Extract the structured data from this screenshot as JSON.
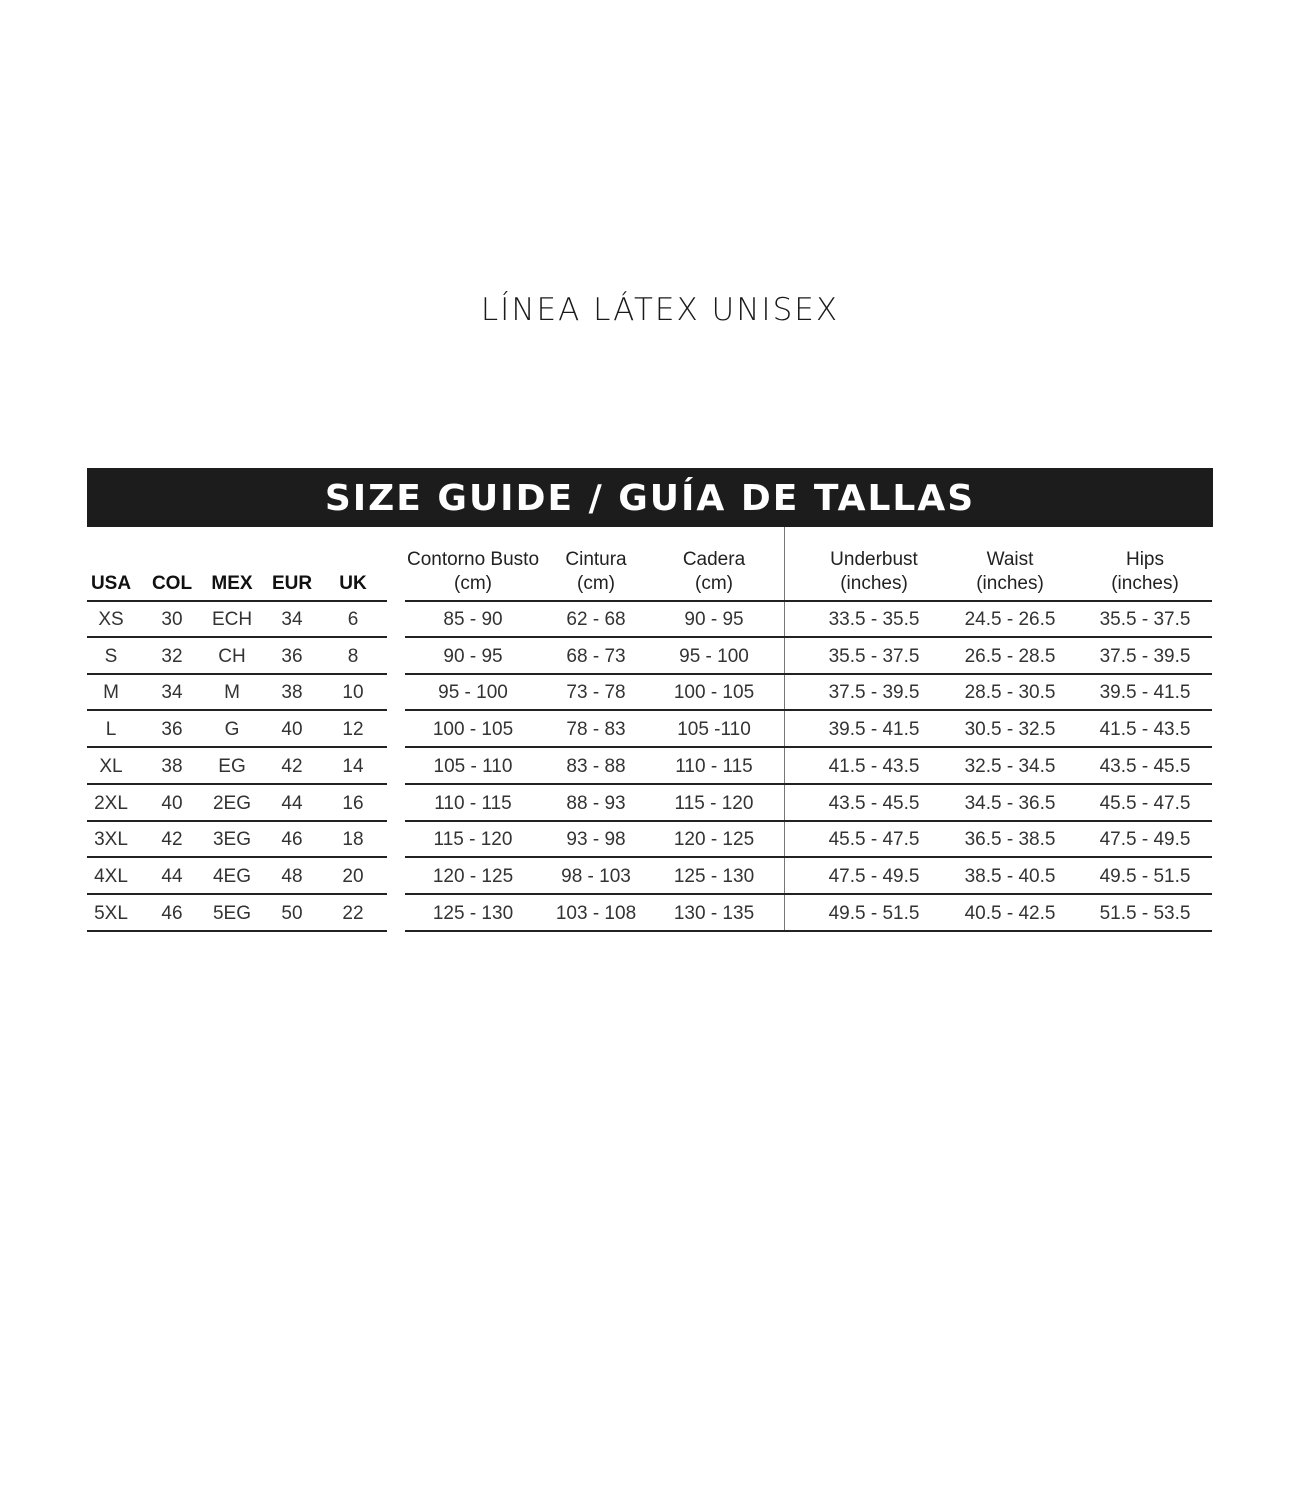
{
  "title": "LÍNEA LÁTEX UNISEX",
  "banner": "SIZE GUIDE / GUÍA DE TALLAS",
  "headers": [
    {
      "line1": "",
      "line2": "USA"
    },
    {
      "line1": "",
      "line2": "COL"
    },
    {
      "line1": "",
      "line2": "MEX"
    },
    {
      "line1": "",
      "line2": "EUR"
    },
    {
      "line1": "",
      "line2": "UK"
    },
    {
      "line1": "Contorno Busto",
      "line2": "(cm)"
    },
    {
      "line1": "Cintura",
      "line2": "(cm)"
    },
    {
      "line1": "Cadera",
      "line2": "(cm)"
    },
    {
      "line1": "Underbust",
      "line2": "(inches)"
    },
    {
      "line1": "Waist",
      "line2": "(inches)"
    },
    {
      "line1": "Hips",
      "line2": "(inches)"
    }
  ],
  "rows": [
    [
      "XS",
      "30",
      "ECH",
      "34",
      "6",
      "85 - 90",
      "62 - 68",
      "90 - 95",
      "33.5 - 35.5",
      "24.5 - 26.5",
      "35.5 - 37.5"
    ],
    [
      "S",
      "32",
      "CH",
      "36",
      "8",
      "90 - 95",
      "68 - 73",
      "95 - 100",
      "35.5 - 37.5",
      "26.5 - 28.5",
      "37.5 - 39.5"
    ],
    [
      "M",
      "34",
      "M",
      "38",
      "10",
      "95 - 100",
      "73 - 78",
      "100 - 105",
      "37.5 - 39.5",
      "28.5 - 30.5",
      "39.5 - 41.5"
    ],
    [
      "L",
      "36",
      "G",
      "40",
      "12",
      "100 - 105",
      "78 - 83",
      "105 -110",
      "39.5 - 41.5",
      "30.5 - 32.5",
      "41.5 - 43.5"
    ],
    [
      "XL",
      "38",
      "EG",
      "42",
      "14",
      "105 - 110",
      "83 - 88",
      "110 - 115",
      "41.5 - 43.5",
      "32.5 - 34.5",
      "43.5 - 45.5"
    ],
    [
      "2XL",
      "40",
      "2EG",
      "44",
      "16",
      "110 - 115",
      "88 - 93",
      "115 - 120",
      "43.5 - 45.5",
      "34.5 - 36.5",
      "45.5 - 47.5"
    ],
    [
      "3XL",
      "42",
      "3EG",
      "46",
      "18",
      "115 - 120",
      "93 - 98",
      "120 - 125",
      "45.5 - 47.5",
      "36.5 - 38.5",
      "47.5 - 49.5"
    ],
    [
      "4XL",
      "44",
      "4EG",
      "48",
      "20",
      "120 - 125",
      "98 - 103",
      "125 - 130",
      "47.5 - 49.5",
      "38.5 - 40.5",
      "49.5 - 51.5"
    ],
    [
      "5XL",
      "46",
      "5EG",
      "50",
      "22",
      "125 - 130",
      "103 - 108",
      "130 - 135",
      "49.5 - 51.5",
      "40.5 - 42.5",
      "51.5 - 53.5"
    ]
  ]
}
